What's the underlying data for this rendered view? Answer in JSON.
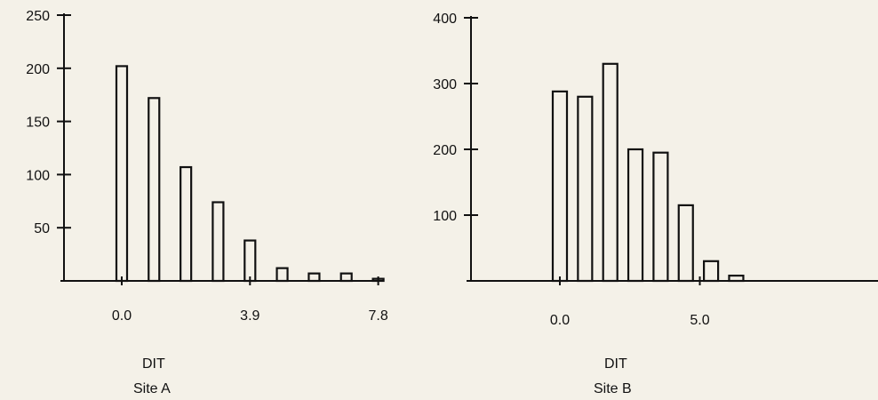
{
  "chart_data": [
    {
      "type": "bar",
      "panel": "Site A",
      "xlabel": "DIT",
      "subtitle": "Site A",
      "ylim": [
        0,
        250
      ],
      "yticks": [
        50,
        100,
        150,
        200,
        250
      ],
      "xticks": [
        0.0,
        3.9,
        7.8
      ],
      "xtick_labels": [
        "0.0",
        "3.9",
        "7.8"
      ],
      "x": [
        0.0,
        0.98,
        1.95,
        2.93,
        3.9,
        4.88,
        5.85,
        6.83,
        7.8
      ],
      "values": [
        202,
        172,
        107,
        74,
        38,
        12,
        7,
        7,
        2
      ]
    },
    {
      "type": "bar",
      "panel": "Site B",
      "xlabel": "DIT",
      "subtitle": "Site B",
      "ylim": [
        0,
        400
      ],
      "yticks": [
        100,
        200,
        300,
        400
      ],
      "xticks": [
        0.0,
        5.0
      ],
      "xtick_labels": [
        "0.0",
        "5.0"
      ],
      "x": [
        0.0,
        0.9,
        1.8,
        2.7,
        3.6,
        4.5,
        5.4,
        6.3
      ],
      "values": [
        288,
        280,
        330,
        200,
        195,
        115,
        30,
        8
      ]
    }
  ]
}
